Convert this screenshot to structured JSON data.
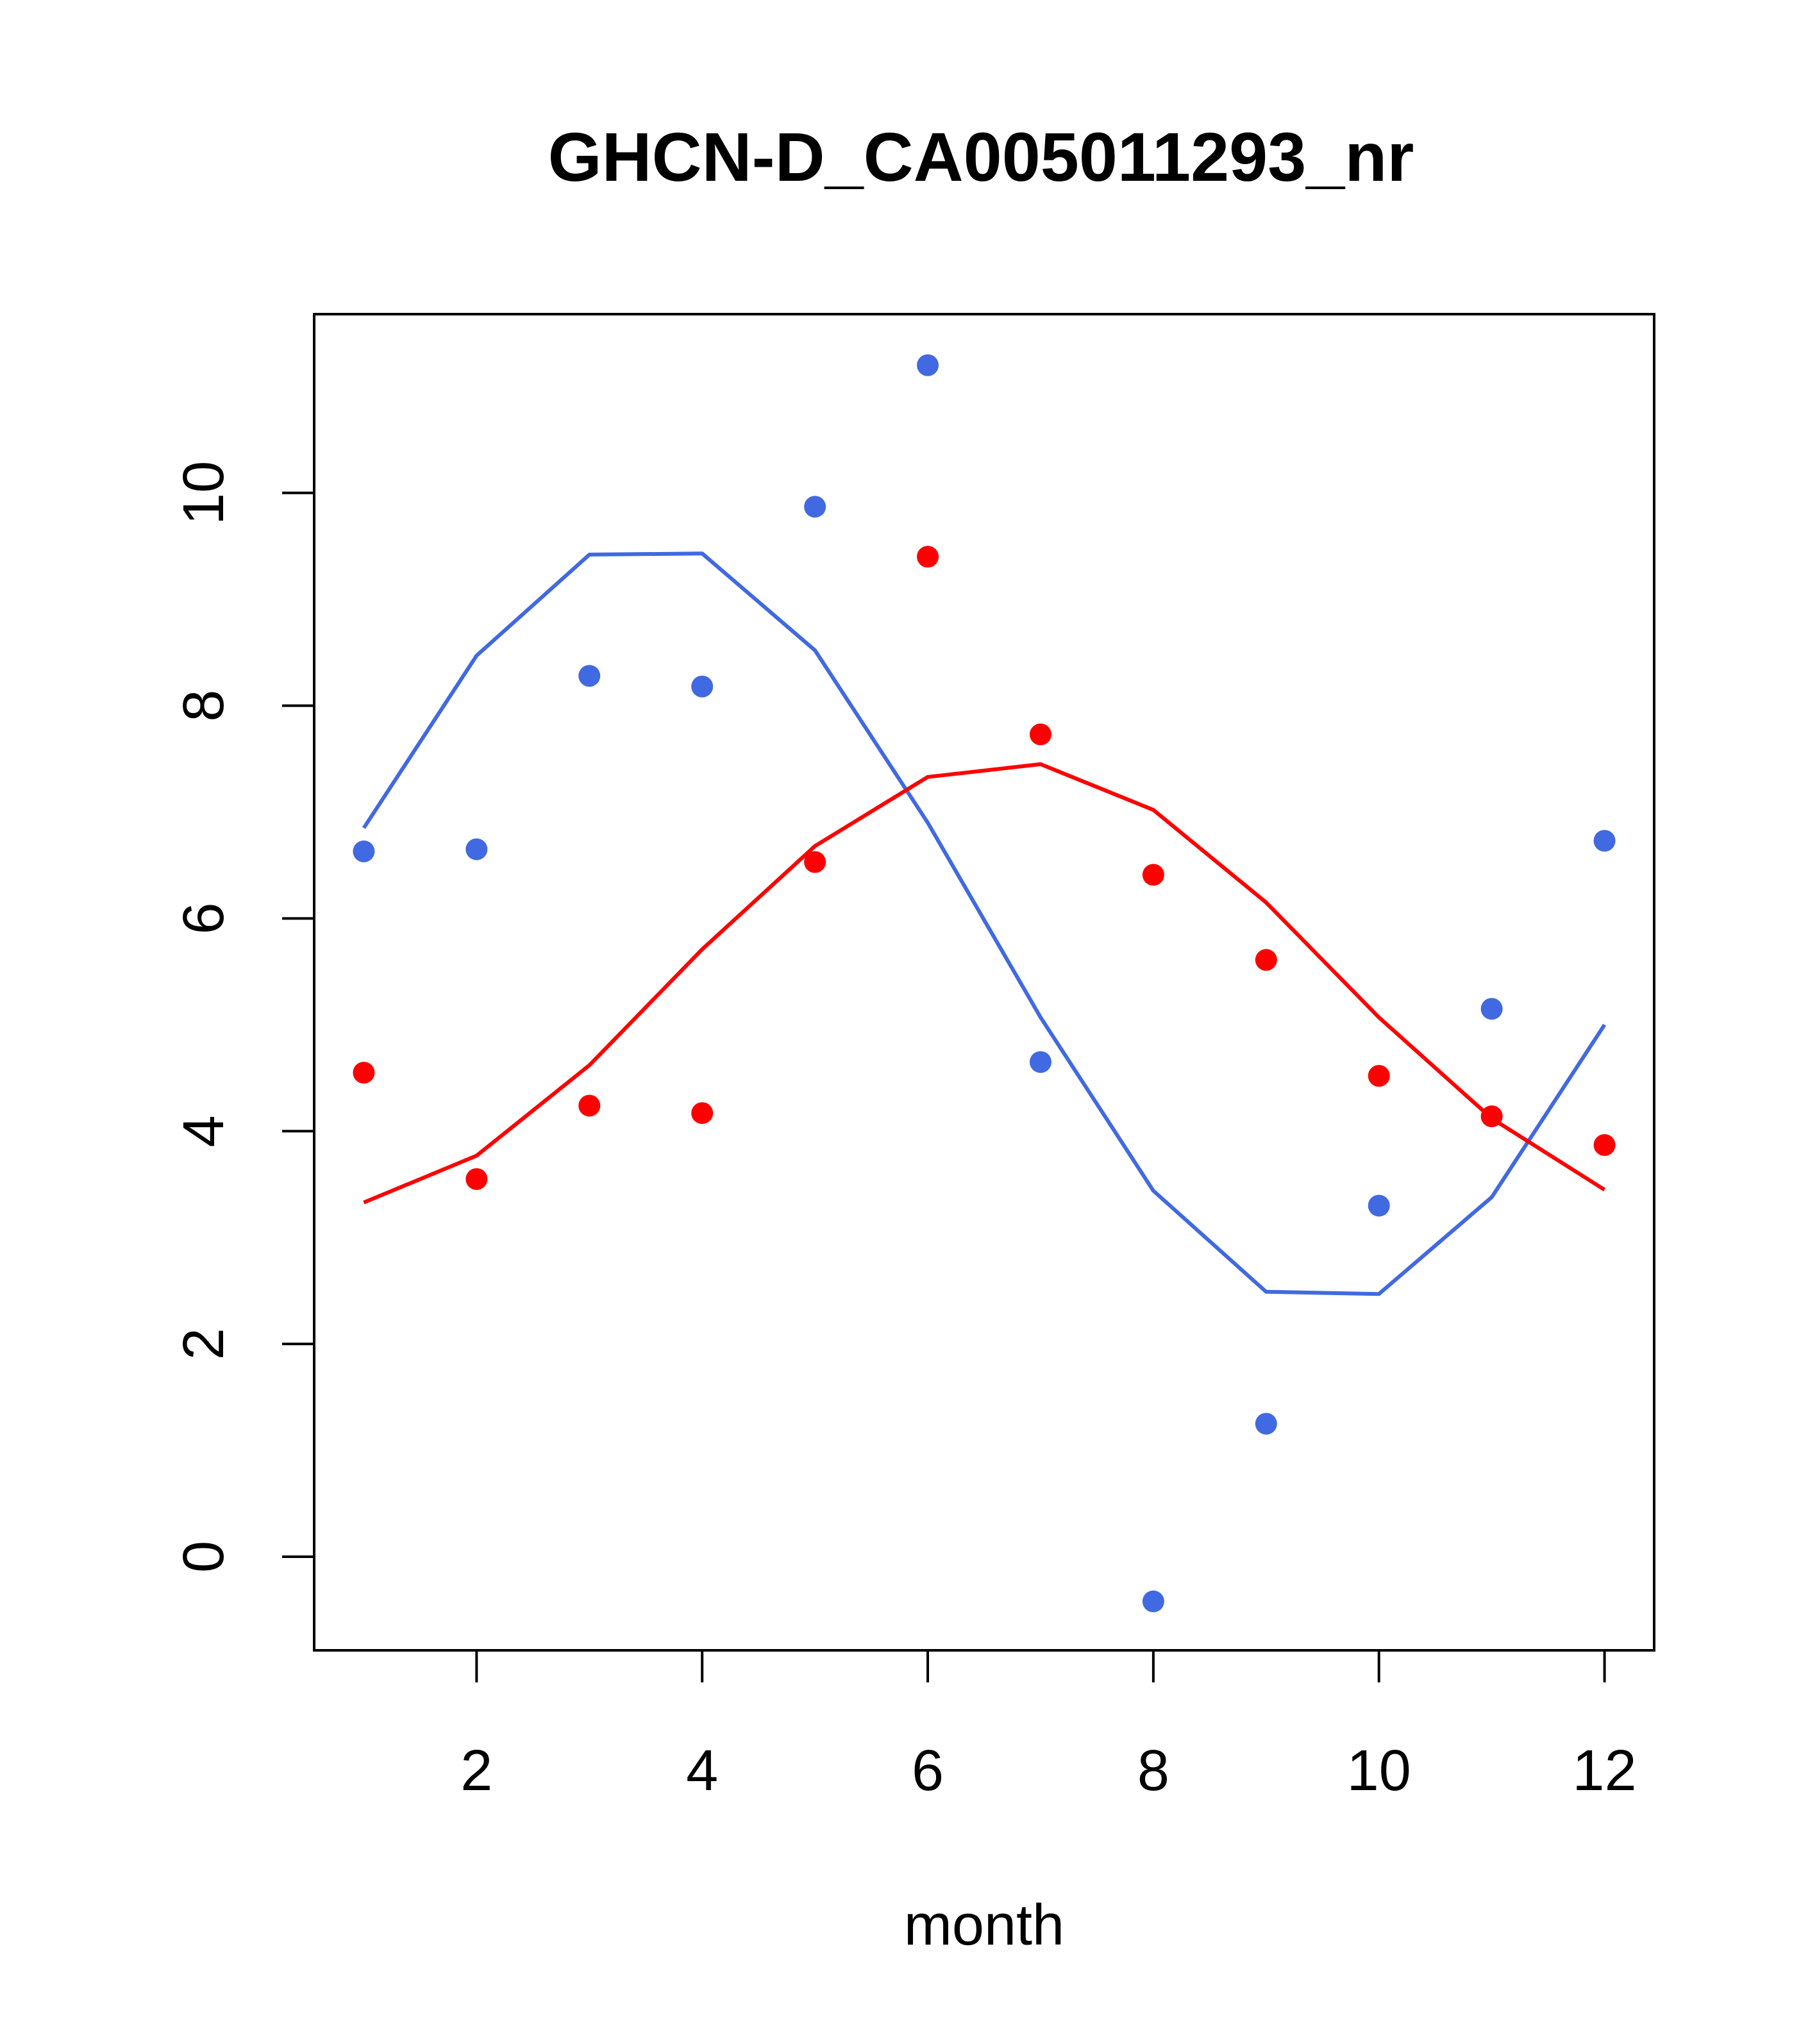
{
  "chart_data": {
    "type": "scatter",
    "title": "GHCN-D_CA005011293_nr",
    "xlabel": "month",
    "ylabel": "",
    "xlim": [
      0.56,
      12.44
    ],
    "ylim": [
      -0.88,
      11.68
    ],
    "xticks": [
      2,
      4,
      6,
      8,
      10,
      12
    ],
    "yticks": [
      0,
      2,
      4,
      6,
      8,
      10
    ],
    "grid": false,
    "series": [
      {
        "color": "#4169E1",
        "points_x": [
          1,
          2,
          3,
          4,
          5,
          6,
          7,
          8,
          9,
          10,
          11,
          12
        ],
        "points_y": [
          6.63,
          6.65,
          8.28,
          8.18,
          9.87,
          11.2,
          4.65,
          -0.42,
          1.25,
          3.3,
          5.15,
          6.73
        ],
        "line_x": [
          1,
          2,
          3,
          4,
          5,
          6,
          7,
          8,
          9,
          10,
          11,
          12
        ],
        "line_y": [
          6.85,
          8.47,
          9.42,
          9.43,
          8.52,
          6.9,
          5.07,
          3.44,
          2.49,
          2.47,
          3.38,
          5.0
        ]
      },
      {
        "color": "#FF0000",
        "points_x": [
          1,
          2,
          3,
          4,
          5,
          6,
          7,
          8,
          9,
          10,
          11,
          12
        ],
        "points_y": [
          4.55,
          3.55,
          4.24,
          4.17,
          6.53,
          9.4,
          7.73,
          6.41,
          5.61,
          4.52,
          4.14,
          3.87
        ],
        "line_x": [
          1,
          2,
          3,
          4,
          5,
          6,
          7,
          8,
          9,
          10,
          11,
          12
        ],
        "line_y": [
          3.33,
          3.77,
          4.62,
          5.71,
          6.68,
          7.33,
          7.45,
          7.02,
          6.15,
          5.07,
          4.12,
          3.45
        ]
      }
    ]
  }
}
